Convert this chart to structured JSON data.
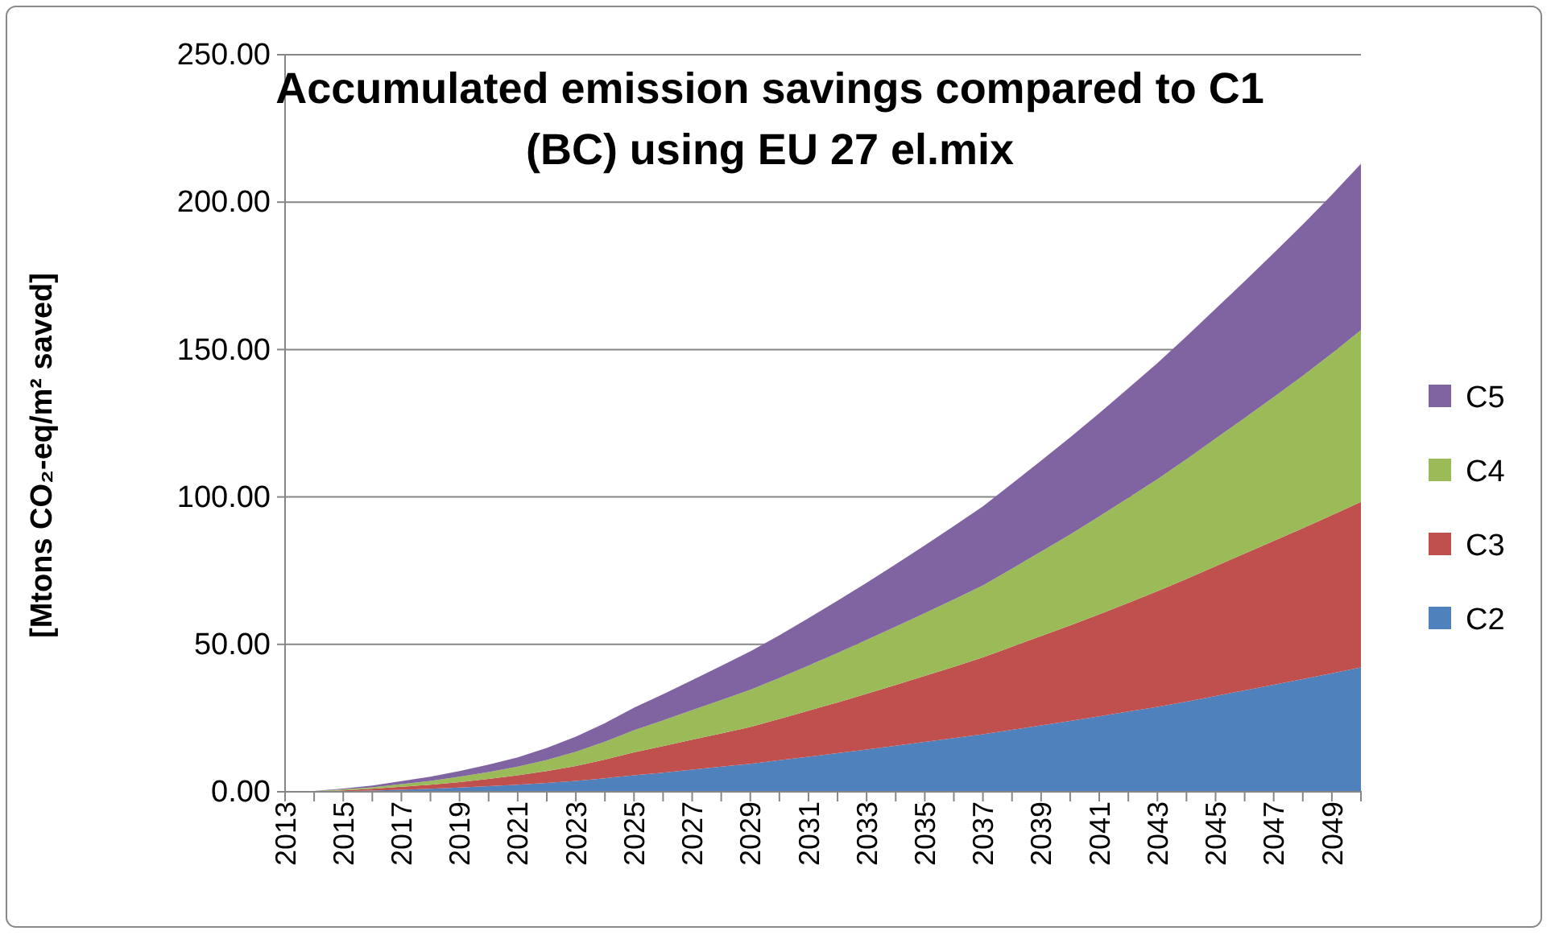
{
  "chart_data": {
    "type": "area",
    "stacked": true,
    "title": "Accumulated emission savings compared to C1 (BC) using EU 27 el.mix",
    "ylabel": "[Mtons CO₂-eq/m² saved]",
    "categories": [
      "2013",
      null,
      "2015",
      null,
      "2017",
      null,
      "2019",
      null,
      "2021",
      null,
      "2023",
      null,
      "2025",
      null,
      "2027",
      null,
      "2029",
      null,
      "2031",
      null,
      "2033",
      null,
      "2035",
      null,
      "2037",
      null,
      "2039",
      null,
      "2041",
      null,
      "2043",
      null,
      "2045",
      null,
      "2047",
      null,
      "2049",
      null
    ],
    "series": [
      {
        "name": "C2",
        "color": "#4f81bd",
        "values": [
          0,
          0,
          0.2,
          0.4,
          0.7,
          1.0,
          1.4,
          1.9,
          2.4,
          3.0,
          3.7,
          4.6,
          5.6,
          6.5,
          7.5,
          8.5,
          9.5,
          10.7,
          11.9,
          13.1,
          14.3,
          15.6,
          16.9,
          18.2,
          19.5,
          21.0,
          22.5,
          24.0,
          25.6,
          27.2,
          28.8,
          30.6,
          32.5,
          34.4,
          36.3,
          38.2,
          40.2,
          42.2
        ]
      },
      {
        "name": "C3",
        "color": "#c0504d",
        "values": [
          0,
          0.1,
          0.3,
          0.6,
          1.0,
          1.4,
          1.9,
          2.5,
          3.2,
          4.0,
          5.0,
          6.3,
          7.8,
          9.0,
          10.2,
          11.3,
          12.5,
          14.0,
          15.6,
          17.2,
          18.9,
          20.6,
          22.4,
          24.2,
          26.1,
          28.2,
          30.3,
          32.4,
          34.6,
          36.9,
          39.2,
          41.6,
          44.0,
          46.4,
          48.8,
          51.2,
          53.6,
          56.1
        ]
      },
      {
        "name": "C4",
        "color": "#9bbb59",
        "values": [
          0,
          0.1,
          0.3,
          0.5,
          0.9,
          1.3,
          1.8,
          2.3,
          2.9,
          3.8,
          4.9,
          6.1,
          7.5,
          8.7,
          10.0,
          11.3,
          12.6,
          13.9,
          15.3,
          16.8,
          18.3,
          19.8,
          21.3,
          22.8,
          24.4,
          26.5,
          28.7,
          30.9,
          33.2,
          35.6,
          38.0,
          40.6,
          43.3,
          46.0,
          48.8,
          51.7,
          54.9,
          58.3
        ]
      },
      {
        "name": "C5",
        "color": "#8064a2",
        "values": [
          0,
          0.1,
          0.3,
          0.6,
          1.0,
          1.4,
          1.9,
          2.5,
          3.2,
          4.1,
          5.1,
          6.3,
          7.6,
          8.9,
          10.2,
          11.6,
          13.0,
          14.5,
          16.1,
          17.7,
          19.4,
          21.2,
          23.0,
          24.9,
          26.8,
          28.8,
          30.8,
          32.9,
          35.0,
          37.2,
          39.4,
          41.7,
          44.0,
          46.4,
          48.8,
          51.3,
          53.8,
          56.4
        ]
      }
    ],
    "ylim": [
      0,
      250
    ],
    "yticks": [
      {
        "value": 0,
        "label": "0.00"
      },
      {
        "value": 50,
        "label": "50.00"
      },
      {
        "value": 100,
        "label": "100.00"
      },
      {
        "value": 150,
        "label": "150.00"
      },
      {
        "value": 200,
        "label": "200.00"
      },
      {
        "value": 250,
        "label": "250.00"
      }
    ],
    "grid": "y",
    "legend": "right"
  }
}
